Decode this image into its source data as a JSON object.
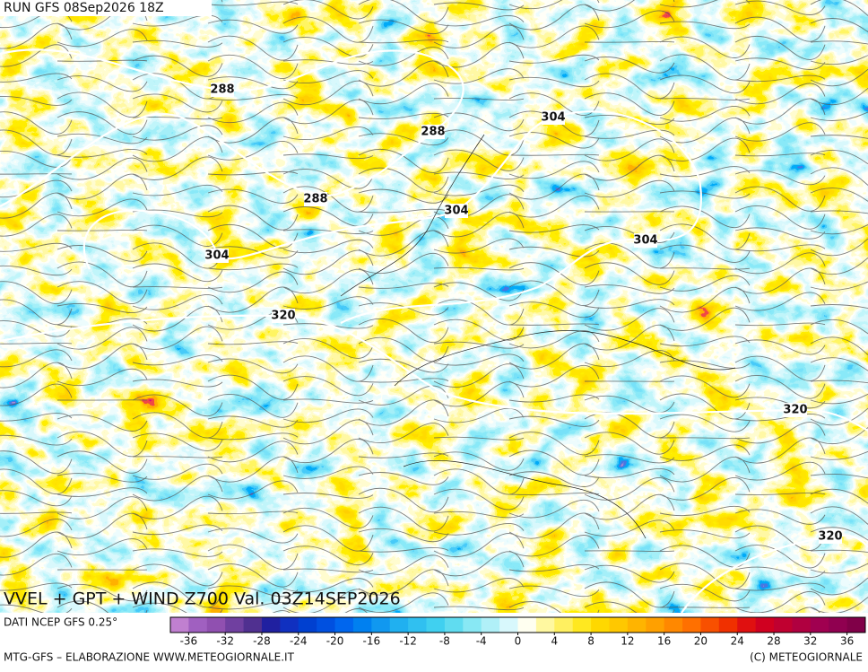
{
  "header": {
    "run": "RUN GFS 08Sep2026 18Z"
  },
  "map": {
    "title": "VVEL + GPT + WIND Z700 Val. 03Z14SEP2026",
    "contour_labels": [
      288,
      288,
      288,
      304,
      304,
      304,
      304,
      320,
      320,
      320
    ]
  },
  "colorbar": {
    "source": "DATI NCEP GFS 0.25°",
    "range": [
      -38,
      38
    ],
    "ticks": [
      -36,
      -32,
      -28,
      -24,
      -20,
      -16,
      -12,
      -8,
      -4,
      0,
      4,
      8,
      12,
      16,
      20,
      24,
      28,
      32,
      36
    ],
    "colors": [
      "#c080d0",
      "#a060c0",
      "#9050b0",
      "#7040a0",
      "#503090",
      "#2020a0",
      "#1030c0",
      "#0040d0",
      "#0050e0",
      "#0066ee",
      "#0080f0",
      "#1098f0",
      "#20b0f0",
      "#30c0f0",
      "#40d0f0",
      "#60dcf0",
      "#88e8f4",
      "#b0f0f8",
      "#d8f8fc",
      "#fffff0",
      "#fff8a0",
      "#fff060",
      "#ffe820",
      "#ffd800",
      "#ffc800",
      "#ffb400",
      "#ffa000",
      "#ff8800",
      "#ff7000",
      "#f85000",
      "#f03000",
      "#e01010",
      "#d00020",
      "#c00030",
      "#b00040",
      "#a00050",
      "#900050",
      "#800048"
    ]
  },
  "footer": {
    "credit": "MTG-GFS – ELABORAZIONE WWW.METEOGIORNALE.IT",
    "copyright": "(C) METEOGIORNALE"
  }
}
